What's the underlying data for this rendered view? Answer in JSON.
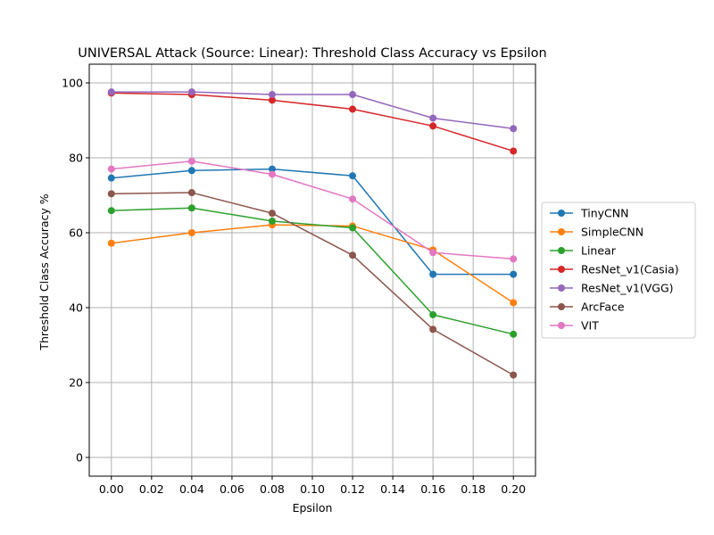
{
  "chart_data": {
    "type": "line",
    "title": "UNIVERSAL Attack (Source: Linear): Threshold Class Accuracy vs Epsilon",
    "xlabel": "Epsilon",
    "ylabel": "Threshold Class Accuracy %",
    "xlim": [
      -0.011,
      0.211
    ],
    "ylim": [
      -5,
      105
    ],
    "x_ticks": [
      "0.00",
      "0.02",
      "0.04",
      "0.06",
      "0.08",
      "0.10",
      "0.12",
      "0.14",
      "0.16",
      "0.18",
      "0.20"
    ],
    "y_ticks": [
      "0",
      "20",
      "40",
      "60",
      "80",
      "100"
    ],
    "grid": true,
    "legend_position": "center-right",
    "x": [
      0.0,
      0.04,
      0.08,
      0.12,
      0.16,
      0.2
    ],
    "series": [
      {
        "name": "TinyCNN",
        "color": "#1f77b4",
        "values": [
          74.6,
          76.6,
          77.0,
          75.2,
          48.9,
          48.9
        ]
      },
      {
        "name": "SimpleCNN",
        "color": "#ff7f0e",
        "values": [
          57.2,
          60.0,
          62.1,
          61.8,
          55.4,
          41.3
        ]
      },
      {
        "name": "Linear",
        "color": "#2ca02c",
        "values": [
          65.9,
          66.6,
          63.1,
          61.3,
          38.1,
          32.9
        ]
      },
      {
        "name": "ResNet_v1(Casia)",
        "color": "#d62728",
        "values": [
          97.3,
          96.9,
          95.4,
          93.0,
          88.5,
          81.8
        ]
      },
      {
        "name": "ResNet_v1(VGG)",
        "color": "#9467bd",
        "values": [
          97.6,
          97.6,
          96.9,
          96.9,
          90.6,
          87.8
        ]
      },
      {
        "name": "ArcFace",
        "color": "#8c564b",
        "values": [
          70.4,
          70.7,
          65.2,
          54.0,
          34.2,
          22.0
        ]
      },
      {
        "name": "VIT",
        "color": "#e377c2",
        "values": [
          77.0,
          79.1,
          75.6,
          69.0,
          54.7,
          53.0
        ]
      }
    ]
  }
}
